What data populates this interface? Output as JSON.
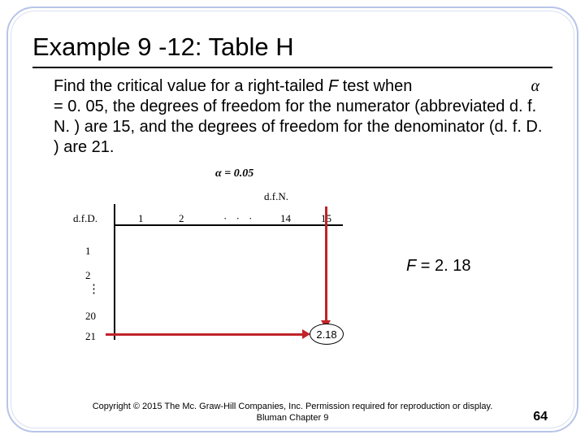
{
  "title": "Example 9 -12: Table H",
  "alpha_char": "α",
  "body_pre": "Find the critical value for a right-tailed ",
  "body_F": "F",
  "body_post": " test when",
  "body_line2": "= 0. 05, the degrees of freedom for the numerator (abbreviated d. f. N. ) are 15, and the degrees of freedom for the denominator (d. f. D. ) are 21.",
  "diagram": {
    "alpha_label": "α = 0.05",
    "dfn_label": "d.f.N.",
    "dfd_label": "d.f.D.",
    "col_heads": {
      "c1": "1",
      "c2": "2",
      "dots": "· · ·",
      "c14": "14",
      "c15": "15"
    },
    "row_heads": {
      "r1": "1",
      "r2": "2",
      "vdots": "⋮",
      "r20": "20",
      "r21": "21"
    },
    "critical_value": "2.18",
    "arrow_color": "#c0232a",
    "line_color": "#000000"
  },
  "result": {
    "F": "F",
    "eq": " = 2. 18"
  },
  "footer": {
    "copyright": "Copyright © 2015 The Mc. Graw-Hill Companies, Inc.   Permission required for reproduction or display.",
    "chapter": "Bluman Chapter 9",
    "page": "64"
  }
}
